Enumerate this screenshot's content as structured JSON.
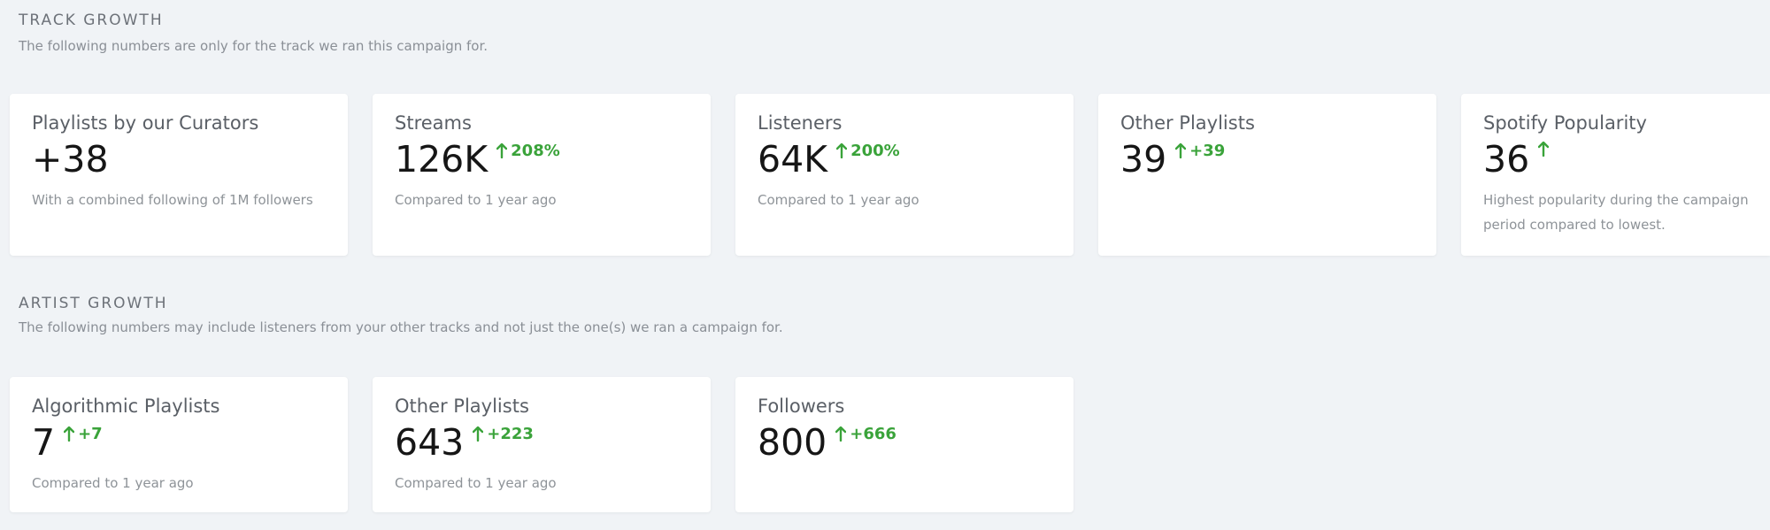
{
  "track_growth": {
    "title": "TRACK GROWTH",
    "description": "The following numbers are only for the track we ran this campaign for.",
    "cards": [
      {
        "title": "Playlists by our Curators",
        "value": "+38",
        "delta": "",
        "description": "With a combined following of 1M followers"
      },
      {
        "title": "Streams",
        "value": "126K",
        "delta": "208%",
        "description": "Compared to 1 year ago"
      },
      {
        "title": "Listeners",
        "value": "64K",
        "delta": "200%",
        "description": "Compared to 1 year ago"
      },
      {
        "title": "Other Playlists",
        "value": "39",
        "delta": "+39",
        "description": ""
      },
      {
        "title": "Spotify Popularity",
        "value": "36",
        "delta": "",
        "description": "Highest popularity during the campaign period compared to lowest."
      }
    ]
  },
  "artist_growth": {
    "title": "ARTIST GROWTH",
    "description": "The following numbers may include listeners from your other tracks and not just the one(s) we ran a campaign for.",
    "cards": [
      {
        "title": "Algorithmic Playlists",
        "value": "7",
        "delta": "+7",
        "description": "Compared to 1 year ago"
      },
      {
        "title": "Other Playlists",
        "value": "643",
        "delta": "+223",
        "description": "Compared to 1 year ago"
      },
      {
        "title": "Followers",
        "value": "800",
        "delta": "+666",
        "description": ""
      }
    ]
  },
  "icons": {
    "delta": "arrow-up-icon"
  },
  "colors": {
    "background": "#f0f3f6",
    "card": "#ffffff",
    "positive": "#3aa33a",
    "value_text": "#161616"
  }
}
